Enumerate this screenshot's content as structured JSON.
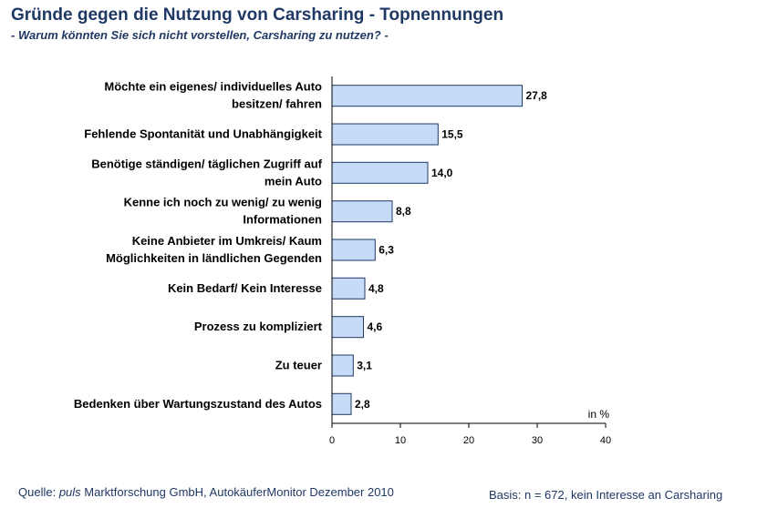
{
  "title": "Gründe gegen die Nutzung von Carsharing - Topnennungen",
  "subtitle": "- Warum könnten Sie sich nicht vorstellen, Carsharing zu nutzen? -",
  "colors": {
    "title": "#1f3864",
    "bar_fill": "#c6dbf7",
    "bar_stroke": "#1f3864",
    "axis": "#000000"
  },
  "chart_data": {
    "type": "bar",
    "orientation": "horizontal",
    "categories": [
      [
        "Möchte ein eigenes/ individuelles Auto",
        "besitzen/ fahren"
      ],
      [
        "Fehlende Spontanität und Unabhängigkeit"
      ],
      [
        "Benötige ständigen/ täglichen Zugriff auf",
        "mein Auto"
      ],
      [
        "Kenne ich noch zu wenig/ zu wenig",
        "Informationen"
      ],
      [
        "Keine Anbieter im Umkreis/ Kaum",
        "Möglichkeiten in ländlichen Gegenden"
      ],
      [
        "Kein Bedarf/ Kein Interesse"
      ],
      [
        "Prozess zu kompliziert"
      ],
      [
        "Zu teuer"
      ],
      [
        "Bedenken über Wartungszustand des Autos"
      ]
    ],
    "values": [
      27.8,
      15.5,
      14.0,
      8.8,
      6.3,
      4.8,
      4.6,
      3.1,
      2.8
    ],
    "value_labels": [
      "27,8",
      "15,5",
      "14,0",
      "8,8",
      "6,3",
      "4,8",
      "4,6",
      "3,1",
      "2,8"
    ],
    "xlim": [
      0,
      40
    ],
    "xticks": [
      0,
      10,
      20,
      30,
      40
    ],
    "xlabel": "in %",
    "grid": false,
    "legend": "none"
  },
  "footer": {
    "source_prefix": "Quelle: ",
    "source_italic": "puls",
    "source_rest": " Marktforschung GmbH, AutokäuferMonitor Dezember 2010",
    "basis": "Basis: n = 672, kein Interesse an Carsharing"
  }
}
